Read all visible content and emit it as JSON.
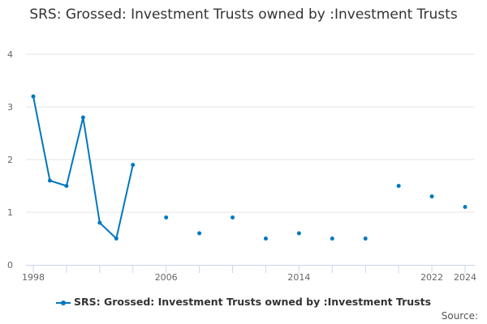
{
  "chart_data": {
    "type": "line",
    "title": "SRS: Grossed: Investment Trusts owned by :Investment Trusts",
    "xlabel": "",
    "ylabel": "",
    "ylim": [
      0,
      4
    ],
    "xlim": [
      1998,
      2024
    ],
    "y_ticks": [
      "0",
      "1",
      "2",
      "3",
      "4"
    ],
    "x_tick_labels": [
      "1998",
      "2006",
      "2014",
      "2022",
      "2024"
    ],
    "grid": true,
    "legend_position": "bottom",
    "series": [
      {
        "name": "SRS: Grossed: Investment Trusts owned by :Investment Trusts",
        "color": "#0077c0",
        "x": [
          1998,
          1999,
          2000,
          2001,
          2002,
          2003,
          2004,
          2006,
          2008,
          2010,
          2012,
          2014,
          2016,
          2018,
          2020,
          2022,
          2024
        ],
        "values": [
          3.2,
          1.6,
          1.5,
          2.8,
          0.8,
          0.5,
          1.9,
          0.9,
          0.6,
          0.9,
          0.5,
          0.6,
          0.5,
          0.5,
          1.5,
          1.3,
          1.1
        ]
      }
    ]
  },
  "source_label": "Source:"
}
